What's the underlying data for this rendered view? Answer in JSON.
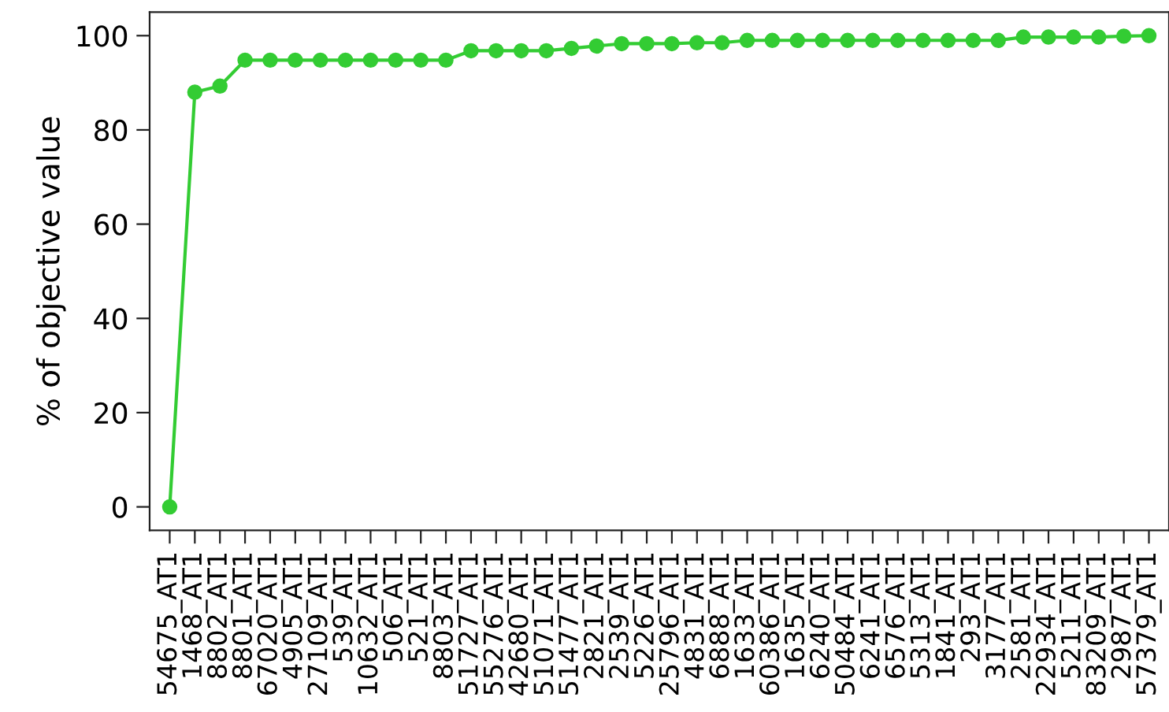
{
  "chart_data": {
    "type": "line",
    "ylabel": "% of objective value",
    "categories": [
      "54675_AT1",
      "1468_AT1",
      "8802_AT1",
      "8801_AT1",
      "67020_AT1",
      "4905_AT1",
      "27109_AT1",
      "539_AT1",
      "10632_AT1",
      "506_AT1",
      "521_AT1",
      "8803_AT1",
      "51727_AT1",
      "55276_AT1",
      "42680_AT1",
      "51071_AT1",
      "51477_AT1",
      "2821_AT1",
      "2539_AT1",
      "5226_AT1",
      "25796_AT1",
      "4831_AT1",
      "6888_AT1",
      "1633_AT1",
      "60386_AT1",
      "1635_AT1",
      "6240_AT1",
      "50484_AT1",
      "6241_AT1",
      "6576_AT1",
      "5313_AT1",
      "1841_AT1",
      "293_AT1",
      "3177_AT1",
      "2581_AT1",
      "22934_AT1",
      "5211_AT1",
      "83209_AT1",
      "2987_AT1",
      "57379_AT1"
    ],
    "series": [
      {
        "color": "#33cc33",
        "values": [
          0,
          88,
          89.3,
          94.8,
          94.8,
          94.8,
          94.8,
          94.8,
          94.8,
          94.8,
          94.8,
          94.8,
          96.8,
          96.8,
          96.8,
          96.8,
          97.3,
          97.8,
          98.3,
          98.3,
          98.3,
          98.5,
          98.5,
          99,
          99,
          99,
          99,
          99,
          99,
          99,
          99,
          99,
          99,
          99,
          99.7,
          99.7,
          99.7,
          99.7,
          99.9,
          100
        ]
      }
    ],
    "ylim": [
      -5,
      105
    ],
    "yticks": [
      0,
      20,
      40,
      60,
      80,
      100
    ],
    "grid": false,
    "marker": "circle",
    "line_style": "solid",
    "legend": false
  }
}
